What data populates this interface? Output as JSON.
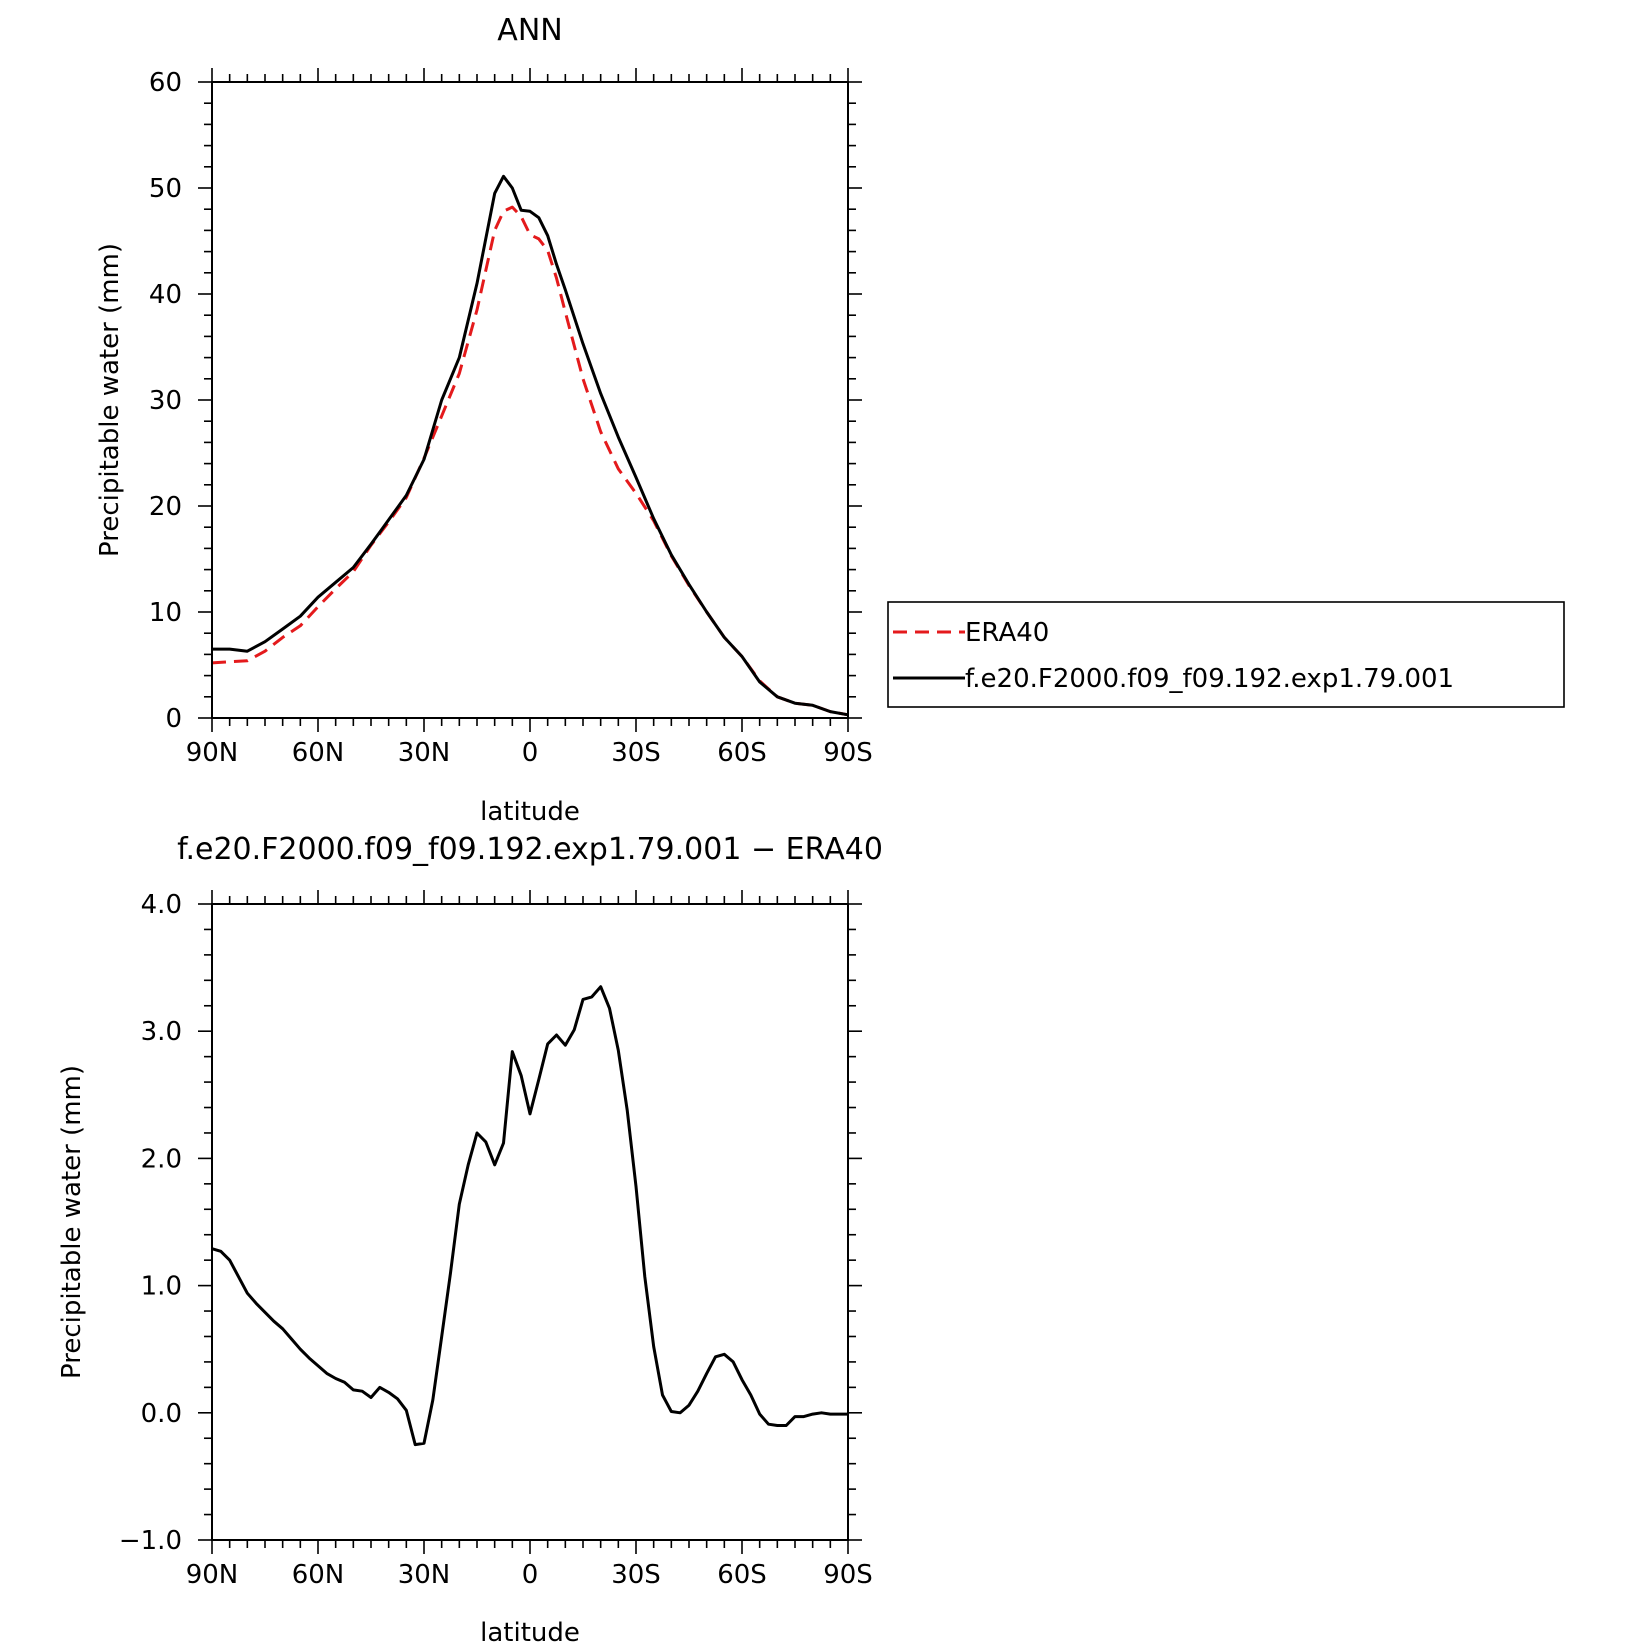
{
  "chart_data": [
    {
      "type": "line",
      "title": "ANN",
      "xlabel": "latitude",
      "ylabel": "Precipitable water (mm)",
      "xlim": [
        90,
        -90
      ],
      "ylim": [
        0,
        60
      ],
      "x_tick_labels": [
        "90N",
        "60N",
        "30N",
        "0",
        "30S",
        "60S",
        "90S"
      ],
      "y_tick_labels": [
        "0",
        "10",
        "20",
        "30",
        "40",
        "50",
        "60"
      ],
      "legend_position": "right",
      "series": [
        {
          "name": "ERA40",
          "color": "#e41a1c",
          "dash": "dashed",
          "x": [
            90,
            85,
            80,
            75,
            70,
            65,
            60,
            55,
            50,
            45,
            40,
            35,
            30,
            25,
            20,
            15,
            10,
            7.5,
            5,
            2.5,
            0,
            -2.5,
            -5,
            -7.5,
            -10,
            -15,
            -20,
            -25,
            -30,
            -35,
            -40,
            -45,
            -50,
            -55,
            -60,
            -65,
            -70,
            -75,
            -80,
            -85,
            -90
          ],
          "y": [
            5.2,
            5.3,
            5.4,
            6.3,
            7.6,
            8.7,
            10.5,
            12.2,
            13.8,
            16.3,
            18.5,
            20.8,
            24.5,
            28.5,
            32.5,
            38.5,
            46,
            47.8,
            48.2,
            47.3,
            45.6,
            45.2,
            44.1,
            41.5,
            38.3,
            32,
            27,
            23.5,
            21.2,
            18.6,
            15.3,
            12.5,
            10,
            7.6,
            5.8,
            3.5,
            2,
            1.4,
            1.2,
            0.6,
            0.3
          ]
        },
        {
          "name": "f.e20.F2000.f09_f09.192.exp1.79.001",
          "color": "#000000",
          "dash": "solid",
          "x": [
            90,
            85,
            80,
            75,
            70,
            65,
            60,
            55,
            50,
            45,
            40,
            35,
            30,
            25,
            20,
            15,
            10,
            7.5,
            5,
            2.5,
            0,
            -2.5,
            -5,
            -7.5,
            -10,
            -15,
            -20,
            -25,
            -30,
            -35,
            -40,
            -45,
            -50,
            -55,
            -60,
            -65,
            -70,
            -75,
            -80,
            -85,
            -90
          ],
          "y": [
            6.5,
            6.5,
            6.3,
            7.2,
            8.4,
            9.6,
            11.4,
            12.8,
            14.2,
            16.4,
            18.7,
            21,
            24.4,
            30,
            34,
            41,
            49.5,
            51.1,
            50,
            47.9,
            47.8,
            47.2,
            45.5,
            42.8,
            40.4,
            35.3,
            30.6,
            26.5,
            22.7,
            18.8,
            15.4,
            12.6,
            10,
            7.6,
            5.8,
            3.4,
            2,
            1.4,
            1.2,
            0.6,
            0.3
          ]
        }
      ]
    },
    {
      "type": "line",
      "title": "f.e20.F2000.f09_f09.192.exp1.79.001 − ERA40",
      "xlabel": "latitude",
      "ylabel": "Precipitable water (mm)",
      "xlim": [
        90,
        -90
      ],
      "ylim": [
        -1.0,
        4.0
      ],
      "x_tick_labels": [
        "90N",
        "60N",
        "30N",
        "0",
        "30S",
        "60S",
        "90S"
      ],
      "y_tick_labels": [
        "−1.0",
        "0.0",
        "1.0",
        "2.0",
        "3.0",
        "4.0"
      ],
      "series": [
        {
          "color": "#000000",
          "dash": "solid",
          "x": [
            90,
            87.5,
            85,
            82.5,
            80,
            77.5,
            75,
            72.5,
            70,
            67.5,
            65,
            62.5,
            60,
            57.5,
            55,
            52.5,
            50,
            47.5,
            45,
            42.5,
            40,
            37.5,
            35,
            32.5,
            30,
            27.5,
            25,
            22.5,
            20,
            17.5,
            15,
            12.5,
            10,
            7.5,
            5,
            2.5,
            0,
            -2.5,
            -5,
            -7.5,
            -10,
            -12.5,
            -15,
            -17.5,
            -20,
            -22.5,
            -25,
            -27.5,
            -30,
            -32.5,
            -35,
            -37.5,
            -40,
            -42.5,
            -45,
            -47.5,
            -50,
            -52.5,
            -55,
            -57.5,
            -60,
            -62.5,
            -65,
            -67.5,
            -70,
            -72.5,
            -75,
            -77.5,
            -80,
            -82.5,
            -85,
            -87.5,
            -90
          ],
          "y": [
            1.29,
            1.27,
            1.2,
            1.07,
            0.94,
            0.86,
            0.79,
            0.72,
            0.66,
            0.58,
            0.5,
            0.43,
            0.37,
            0.31,
            0.27,
            0.24,
            0.18,
            0.17,
            0.12,
            0.2,
            0.16,
            0.11,
            0.02,
            -0.25,
            -0.24,
            0.1,
            0.6,
            1.1,
            1.64,
            1.95,
            2.2,
            2.13,
            1.95,
            2.12,
            2.84,
            2.65,
            2.35,
            2.62,
            2.9,
            2.97,
            2.89,
            3.01,
            3.25,
            3.27,
            3.35,
            3.18,
            2.85,
            2.38,
            1.78,
            1.07,
            0.52,
            0.14,
            0.01,
            0.0,
            0.06,
            0.17,
            0.31,
            0.44,
            0.46,
            0.4,
            0.26,
            0.14,
            -0.01,
            -0.09,
            -0.1,
            -0.1,
            -0.03,
            -0.03,
            -0.01,
            0.0,
            -0.01,
            -0.01,
            -0.01
          ]
        }
      ]
    }
  ]
}
